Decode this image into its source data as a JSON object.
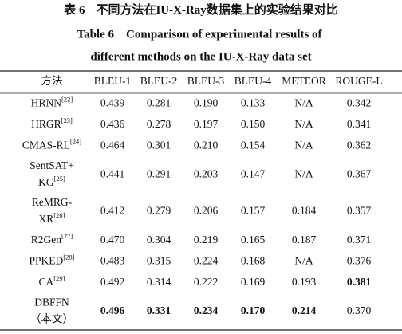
{
  "caption": {
    "label": "表 6",
    "title_zh": "不同方法在IU-X-Ray数据集上的实验结果对比",
    "title_en_lines": [
      "Table 6    Comparison of experimental results of",
      "different methods on the IU-X-Ray data set"
    ]
  },
  "table": {
    "header": [
      "方法",
      "BLEU-1",
      "BLEU-2",
      "BLEU-3",
      "BLEU-4",
      "METEOR",
      "ROUGE-L"
    ],
    "rows": [
      {
        "name_lines": [
          "HRNN"
        ],
        "ref": "[22]",
        "cells": [
          "0.439",
          "0.281",
          "0.190",
          "0.133",
          "N/A",
          "0.342"
        ],
        "bold": [
          false,
          false,
          false,
          false,
          false,
          false
        ]
      },
      {
        "name_lines": [
          "HRGR"
        ],
        "ref": "[23]",
        "cells": [
          "0.436",
          "0.278",
          "0.197",
          "0.150",
          "N/A",
          "0.341"
        ],
        "bold": [
          false,
          false,
          false,
          false,
          false,
          false
        ]
      },
      {
        "name_lines": [
          "CMAS-RL"
        ],
        "ref": "[24]",
        "cells": [
          "0.464",
          "0.301",
          "0.210",
          "0.154",
          "N/A",
          "0.362"
        ],
        "bold": [
          false,
          false,
          false,
          false,
          false,
          false
        ]
      },
      {
        "name_lines": [
          "SentSAT+",
          "KG"
        ],
        "ref": "[25]",
        "cells": [
          "0.441",
          "0.291",
          "0.203",
          "0.147",
          "N/A",
          "0.367"
        ],
        "bold": [
          false,
          false,
          false,
          false,
          false,
          false
        ]
      },
      {
        "name_lines": [
          "ReMRG-",
          "XR"
        ],
        "ref": "[26]",
        "cells": [
          "0.412",
          "0.279",
          "0.206",
          "0.157",
          "0.184",
          "0.357"
        ],
        "bold": [
          false,
          false,
          false,
          false,
          false,
          false
        ]
      },
      {
        "name_lines": [
          "R2Gen"
        ],
        "ref": "[27]",
        "cells": [
          "0.470",
          "0.304",
          "0.219",
          "0.165",
          "0.187",
          "0.371"
        ],
        "bold": [
          false,
          false,
          false,
          false,
          false,
          false
        ]
      },
      {
        "name_lines": [
          "PPKED"
        ],
        "ref": "[28]",
        "cells": [
          "0.483",
          "0.315",
          "0.224",
          "0.168",
          "N/A",
          "0.376"
        ],
        "bold": [
          false,
          false,
          false,
          false,
          false,
          false
        ]
      },
      {
        "name_lines": [
          "CA"
        ],
        "ref": "[29]",
        "cells": [
          "0.492",
          "0.314",
          "0.222",
          "0.169",
          "0.193",
          "0.381"
        ],
        "bold": [
          false,
          false,
          false,
          false,
          false,
          true
        ]
      },
      {
        "name_lines": [
          "DBFFN",
          "（本文）"
        ],
        "cells": [
          "0.496",
          "0.331",
          "0.234",
          "0.170",
          "0.214",
          "0.370"
        ],
        "bold": [
          true,
          true,
          true,
          true,
          true,
          false
        ]
      }
    ]
  }
}
